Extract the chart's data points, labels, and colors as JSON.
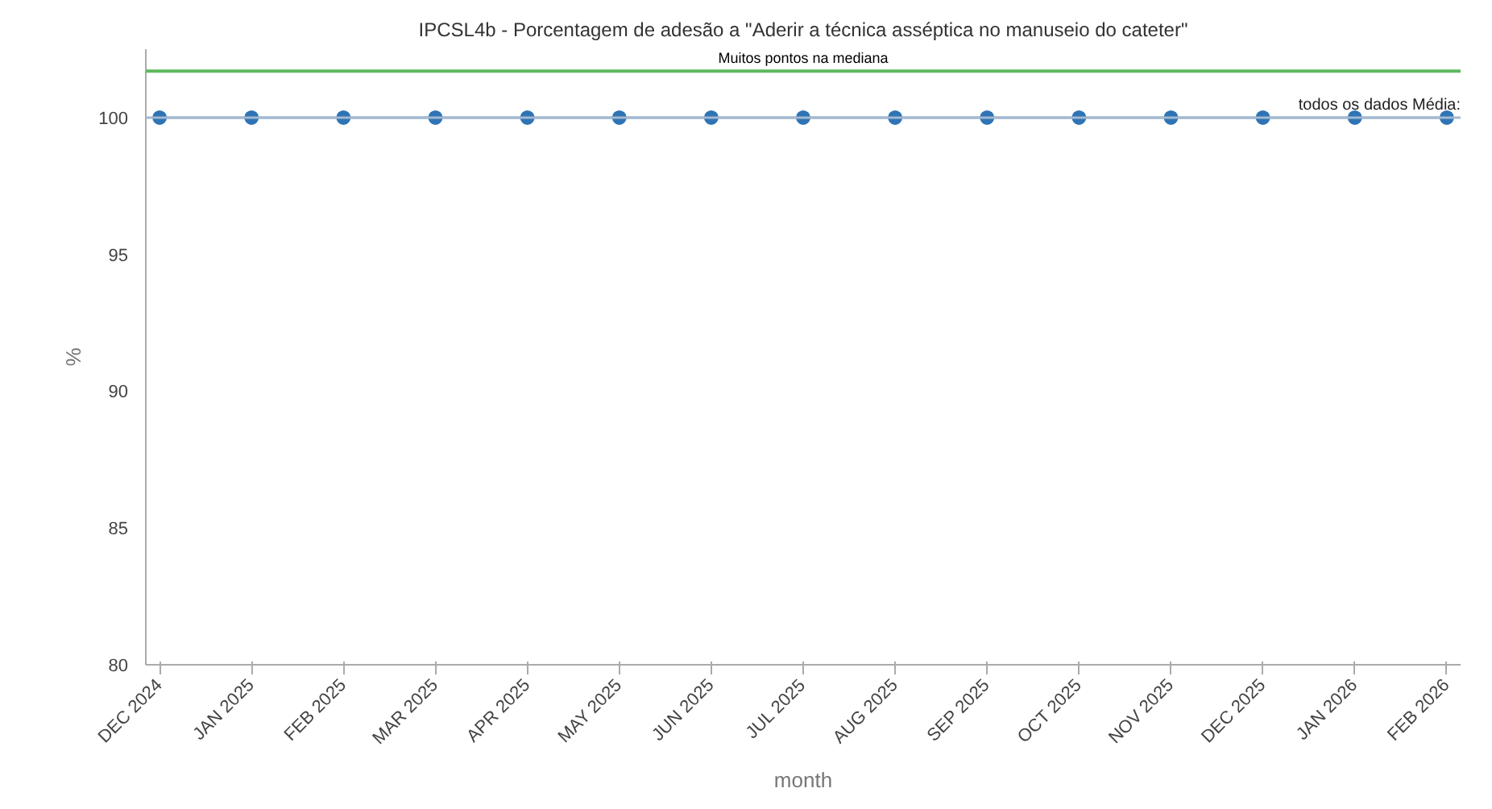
{
  "chart_data": {
    "type": "line",
    "title": "IPCSL4b - Porcentagem de adesão a \"Aderir a técnica asséptica no manuseio do cateter\"",
    "xlabel": "month",
    "ylabel": "%",
    "categories": [
      "DEC 2024",
      "JAN 2025",
      "FEB 2025",
      "MAR 2025",
      "APR 2025",
      "MAY 2025",
      "JUN 2025",
      "JUL 2025",
      "AUG 2025",
      "SEP 2025",
      "OCT 2025",
      "NOV 2025",
      "DEC 2025",
      "JAN 2026",
      "FEB 2026"
    ],
    "series": [
      {
        "color": "#2f74b5",
        "values": [
          100,
          100,
          100,
          100,
          100,
          100,
          100,
          100,
          100,
          100,
          100,
          100,
          100,
          100,
          100
        ]
      }
    ],
    "ylim": [
      80,
      102.5
    ],
    "yticks": [
      80,
      85,
      90,
      95,
      100
    ],
    "grid": false,
    "marker": "circle",
    "line_style": "solid",
    "ref_lines": [
      {
        "axis": "y",
        "value": 101.7,
        "label": "Muitos pontos na mediana",
        "color": "#5cb85c"
      },
      {
        "axis": "y",
        "value": 100,
        "label": "todos os dados Média:",
        "color": "#a3b8d0"
      }
    ]
  }
}
